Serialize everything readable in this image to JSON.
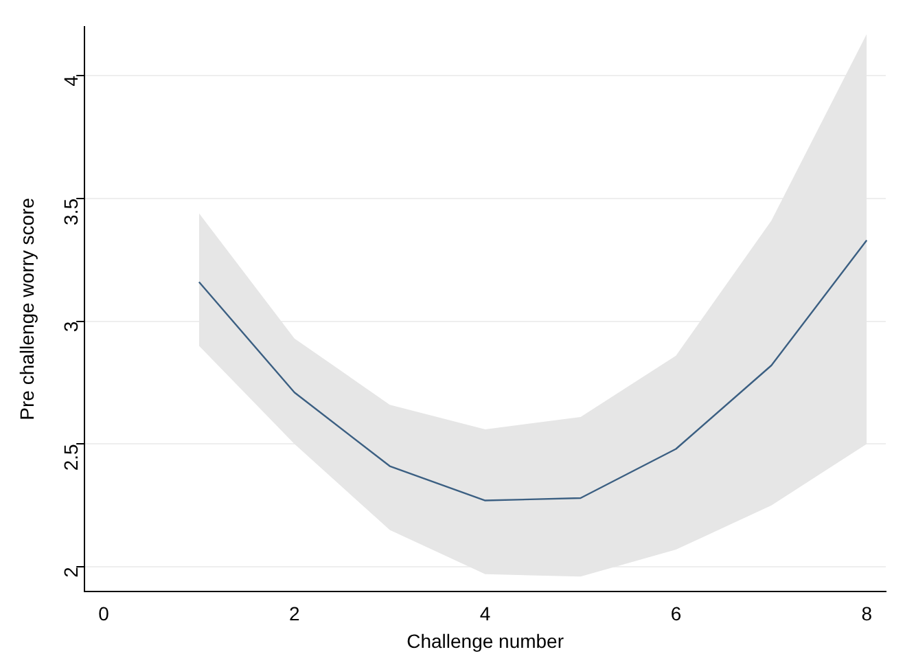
{
  "chart_data": {
    "type": "line",
    "xlabel": "Challenge number",
    "ylabel": "Pre challenge worry score",
    "x": [
      1,
      2,
      3,
      4,
      5,
      6,
      7,
      8
    ],
    "series": [
      {
        "color": "#3b5f82",
        "values": [
          3.16,
          2.71,
          2.41,
          2.27,
          2.28,
          2.48,
          2.82,
          3.33
        ],
        "lower": [
          2.9,
          2.5,
          2.15,
          1.97,
          1.96,
          2.07,
          2.25,
          2.5
        ],
        "upper": [
          3.44,
          2.93,
          2.66,
          2.56,
          2.61,
          2.86,
          3.41,
          4.17
        ]
      }
    ],
    "xlim": [
      -0.2,
      8.2
    ],
    "xticks": [
      0,
      2,
      4,
      6,
      8
    ],
    "ylim": [
      1.9,
      4.2
    ],
    "yticks": [
      2,
      2.5,
      3,
      3.5,
      4
    ],
    "grid": "y",
    "legend": false,
    "marker": "none"
  }
}
